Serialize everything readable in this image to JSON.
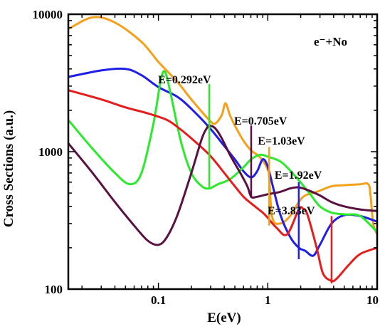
{
  "chart_data": {
    "type": "line",
    "title": "",
    "xlabel": "E(eV)",
    "ylabel": "Cross Sections (a.u.)",
    "xscale": "log",
    "yscale": "log",
    "xlim": [
      0.015,
      10
    ],
    "ylim": [
      100,
      10000
    ],
    "xticks": [
      0.1,
      1,
      10
    ],
    "xtick_labels": [
      "0.1",
      "1",
      "10"
    ],
    "yticks": [
      100,
      1000,
      10000
    ],
    "ytick_labels": [
      "100",
      "1000",
      "10000"
    ],
    "grid": false,
    "corner_label": "e⁻+No",
    "annotations": [
      {
        "text": "E=0.292eV",
        "x": 0.292
      },
      {
        "text": "E=0.705eV",
        "x": 0.705
      },
      {
        "text": "E=1.03eV",
        "x": 1.03
      },
      {
        "text": "E=1.92eV",
        "x": 1.92
      },
      {
        "text": "E=3.83eV",
        "x": 3.83
      }
    ],
    "series": [
      {
        "color": "#f5a01a",
        "x": [
          0.015,
          0.025,
          0.04,
          0.07,
          0.1,
          0.15,
          0.2,
          0.292,
          0.33,
          0.38,
          0.41,
          0.45,
          0.5,
          0.6,
          0.705,
          0.8,
          0.9,
          1.0,
          1.03,
          1.1,
          1.3,
          1.6,
          1.92,
          2.2,
          2.8,
          3.83,
          5,
          7,
          8.3,
          8.7,
          9.2,
          10
        ],
        "y": [
          7800,
          9500,
          8700,
          6300,
          4500,
          3200,
          2400,
          1700,
          1600,
          1850,
          2250,
          1850,
          1550,
          1200,
          1020,
          950,
          860,
          740,
          650,
          330,
          300,
          340,
          430,
          480,
          510,
          560,
          570,
          580,
          580,
          480,
          300,
          250
        ],
        "spikes": [
          {
            "x": 0.292,
            "top": 1650,
            "bottom": 1650
          },
          {
            "x": 1.03,
            "top": 1080,
            "bottom": 290
          }
        ]
      },
      {
        "color": "#1f1fe6",
        "x": [
          0.015,
          0.03,
          0.05,
          0.07,
          0.1,
          0.15,
          0.2,
          0.292,
          0.4,
          0.5,
          0.6,
          0.705,
          0.8,
          0.9,
          1.0,
          1.1,
          1.3,
          1.6,
          1.92,
          2.2,
          2.6,
          3.0,
          3.83,
          5,
          7,
          10
        ],
        "y": [
          3500,
          3900,
          4000,
          3600,
          2950,
          2500,
          2050,
          1500,
          1100,
          880,
          720,
          650,
          720,
          880,
          780,
          580,
          350,
          240,
          200,
          190,
          175,
          210,
          300,
          345,
          340,
          310
        ],
        "spikes": [
          {
            "x": 1.92,
            "top": 600,
            "bottom": 165
          }
        ]
      },
      {
        "color": "#2bea2b",
        "x": [
          0.015,
          0.025,
          0.04,
          0.055,
          0.07,
          0.09,
          0.105,
          0.115,
          0.13,
          0.16,
          0.2,
          0.25,
          0.292,
          0.35,
          0.45,
          0.6,
          0.705,
          0.85,
          1.0,
          1.3,
          1.6,
          1.92,
          2.4,
          3.0,
          3.83,
          5,
          7,
          10
        ],
        "y": [
          1700,
          1050,
          700,
          580,
          700,
          1600,
          3300,
          3800,
          2600,
          1200,
          700,
          560,
          540,
          580,
          630,
          770,
          880,
          950,
          920,
          850,
          730,
          620,
          500,
          400,
          360,
          350,
          340,
          260
        ],
        "spikes": [
          {
            "x": 0.292,
            "top": 3100,
            "bottom": 540
          }
        ]
      },
      {
        "color": "#e51d1d",
        "x": [
          0.015,
          0.03,
          0.05,
          0.08,
          0.12,
          0.16,
          0.2,
          0.292,
          0.4,
          0.5,
          0.6,
          0.705,
          0.9,
          1.0,
          1.2,
          1.5,
          1.92,
          2.1,
          2.3,
          2.8,
          3.2,
          3.83,
          4.3,
          5.5,
          7,
          10
        ],
        "y": [
          2800,
          2400,
          2100,
          1900,
          1700,
          1450,
          1250,
          950,
          700,
          560,
          470,
          420,
          360,
          330,
          280,
          250,
          380,
          385,
          350,
          200,
          130,
          115,
          120,
          150,
          180,
          200
        ],
        "spikes": [
          {
            "x": 3.83,
            "top": 340,
            "bottom": 110
          }
        ]
      },
      {
        "color": "#5a1040",
        "x": [
          0.015,
          0.025,
          0.04,
          0.06,
          0.08,
          0.1,
          0.12,
          0.15,
          0.2,
          0.25,
          0.28,
          0.292,
          0.33,
          0.38,
          0.45,
          0.55,
          0.65,
          0.705,
          0.8,
          1.0,
          1.3,
          1.6,
          1.92,
          2.4,
          3.0,
          3.83,
          5,
          7,
          10
        ],
        "y": [
          1150,
          700,
          430,
          290,
          225,
          210,
          240,
          350,
          700,
          1250,
          1500,
          1550,
          1480,
          1250,
          950,
          720,
          560,
          470,
          470,
          490,
          510,
          540,
          550,
          520,
          480,
          430,
          400,
          380,
          370
        ],
        "spikes": [
          {
            "x": 0.705,
            "top": 1550,
            "bottom": 460
          }
        ]
      }
    ]
  }
}
